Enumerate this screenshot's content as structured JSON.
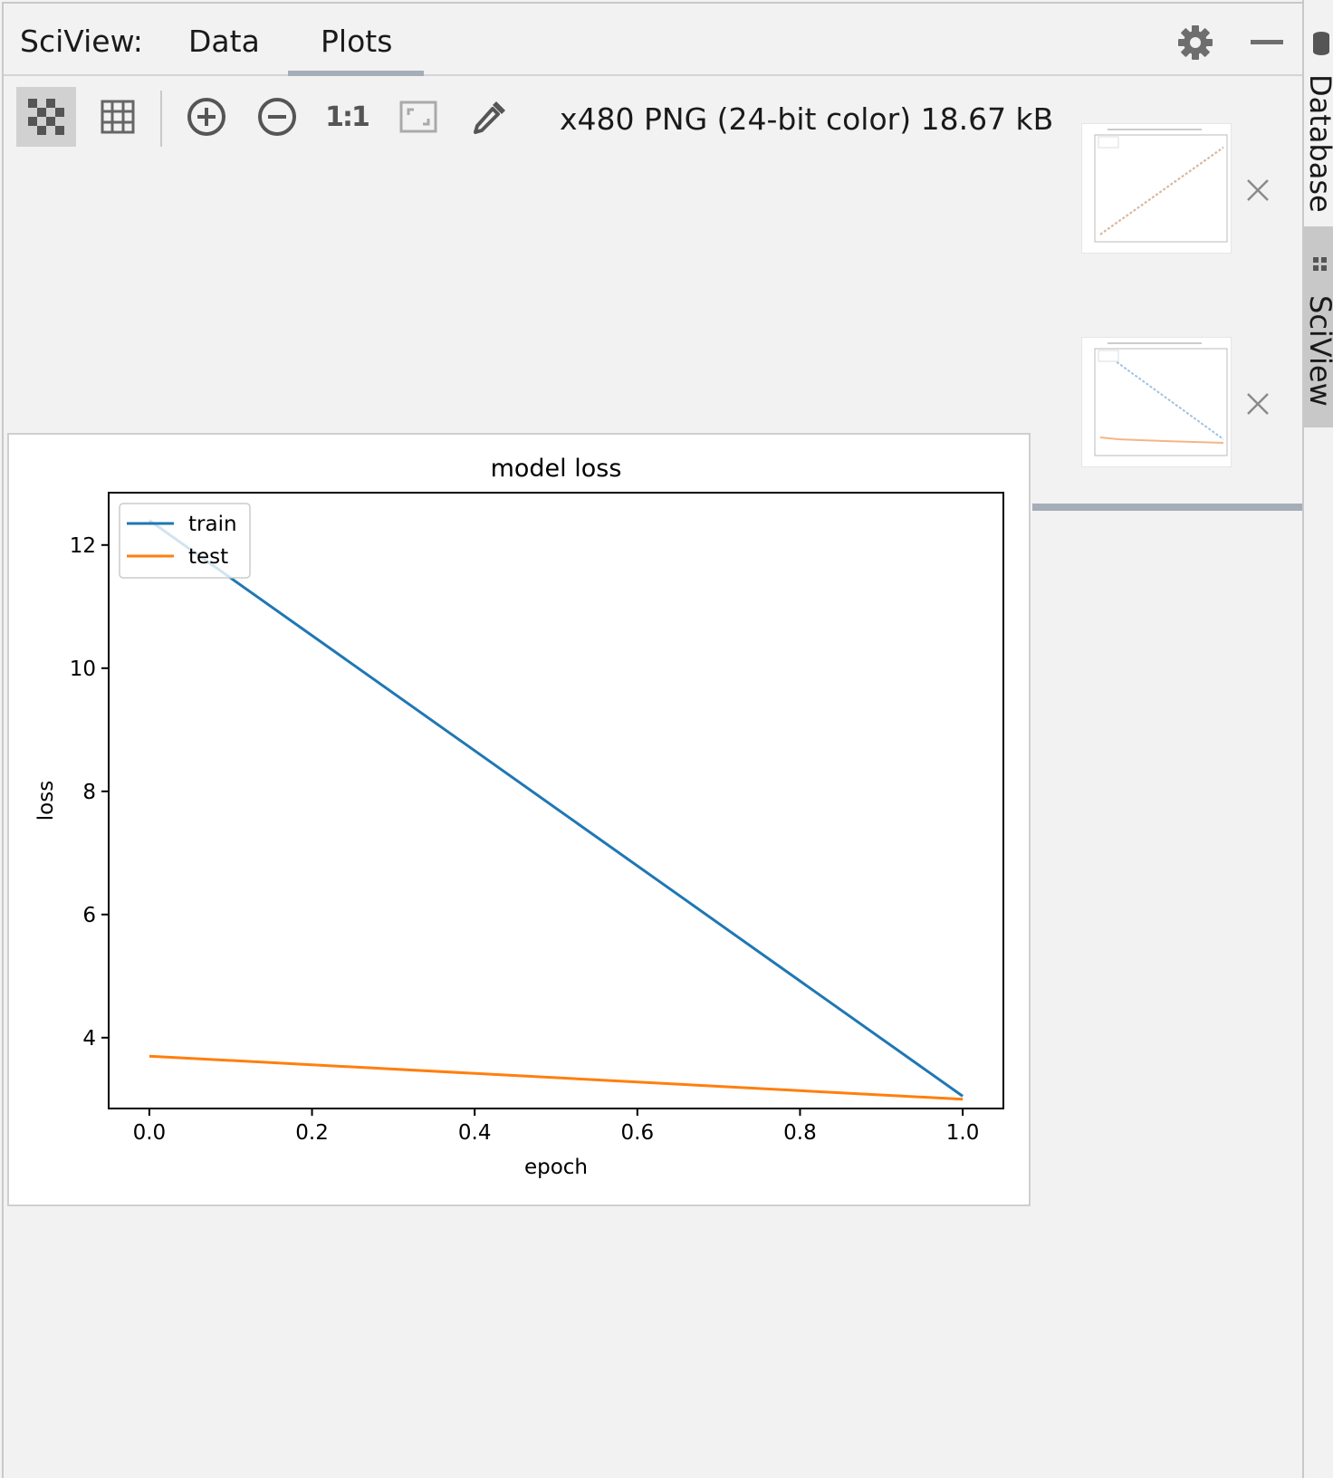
{
  "header": {
    "title": "SciView:",
    "tabs": [
      {
        "label": "Data",
        "active": false
      },
      {
        "label": "Plots",
        "active": true
      }
    ]
  },
  "toolbar": {
    "buttons": [
      "transparency-checker",
      "grid",
      "zoom-in",
      "zoom-out",
      "actual-size",
      "fit-to-window",
      "color-picker"
    ],
    "actual_size_label": "1:1",
    "image_info": "x480 PNG (24-bit color) 18.67 kB"
  },
  "side_tabs": [
    {
      "label": "Database",
      "icon": "database-icon"
    },
    {
      "label": "SciView",
      "icon": "table-icon",
      "active": true
    }
  ],
  "thumbnails": [
    {
      "name": "model accuracy thumbnail",
      "selected": false
    },
    {
      "name": "model loss thumbnail",
      "selected": true
    }
  ],
  "colors": {
    "accent": "#a5adb9",
    "train": "#1f77b4",
    "test": "#ff7f0e",
    "panel_bg": "#f2f2f2"
  },
  "chart_data": {
    "type": "line",
    "title": "model loss",
    "xlabel": "epoch",
    "ylabel": "loss",
    "x": [
      0.0,
      1.0
    ],
    "xlim": [
      -0.05,
      1.05
    ],
    "ylim": [
      2.85,
      12.85
    ],
    "xticks": [
      "0.0",
      "0.2",
      "0.4",
      "0.6",
      "0.8",
      "1.0"
    ],
    "yticks": [
      "4",
      "6",
      "8",
      "10",
      "12"
    ],
    "legend": "upper left",
    "series": [
      {
        "name": "train",
        "values": [
          12.4,
          3.05
        ],
        "color": "#1f77b4"
      },
      {
        "name": "test",
        "values": [
          3.7,
          3.0
        ],
        "color": "#ff7f0e"
      }
    ]
  }
}
